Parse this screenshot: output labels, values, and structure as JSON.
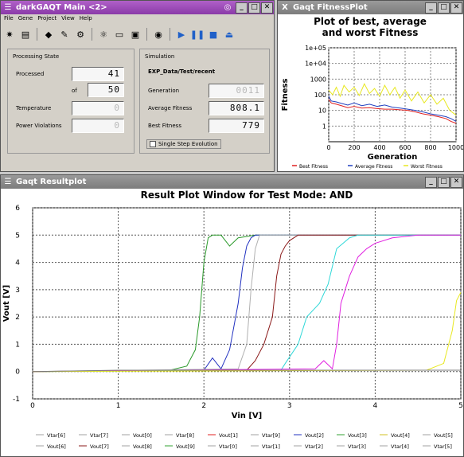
{
  "main_window": {
    "title": "darkGAQT Main <2>",
    "menu": [
      "File",
      "Gene",
      "Project",
      "View",
      "Help"
    ],
    "processing_state": {
      "label": "Processing State",
      "processed_label": "Processed",
      "processed_value": "41",
      "of_label": "of",
      "of_value": "50",
      "temperature_label": "Temperature",
      "temperature_value": "0",
      "power_label": "Power Violations",
      "power_value": "0"
    },
    "simulation": {
      "label": "Simulation",
      "path": "EXP_Data/Test/recent",
      "generation_label": "Generation",
      "generation_value": "0011",
      "avg_label": "Average Fitness",
      "avg_value": "808.1",
      "best_label": "Best Fitness",
      "best_value": "779",
      "single_step_label": "Single Step Evolution",
      "single_step_checked": false
    }
  },
  "fitness_window": {
    "title": "Gaqt FitnessPlot",
    "chart_data": {
      "type": "line",
      "title": "Plot of best, average and worst Fitness",
      "xlabel": "Generation",
      "ylabel": "Fitness",
      "xlim": [
        0,
        1000
      ],
      "ylim": [
        0.1,
        100000
      ],
      "yscale": "log",
      "x_ticks": [
        0,
        200,
        400,
        600,
        800,
        1000
      ],
      "y_ticks": [
        "1e+05",
        "1e+04",
        "1000",
        "100",
        "10",
        "1"
      ],
      "legend": [
        "Best Fitness",
        "Average Fitness",
        "Worst Fitness"
      ],
      "series": [
        {
          "name": "Best Fitness",
          "color": "#e02020",
          "x": [
            0,
            20,
            60,
            100,
            150,
            200,
            260,
            320,
            380,
            440,
            500,
            560,
            620,
            680,
            740,
            800,
            860,
            920,
            960,
            1000
          ],
          "y": [
            50,
            30,
            25,
            20,
            15,
            18,
            14,
            15,
            13,
            12,
            12,
            11,
            10,
            8,
            6,
            5,
            4,
            3,
            2,
            1.5
          ]
        },
        {
          "name": "Average Fitness",
          "color": "#2040c0",
          "x": [
            0,
            20,
            60,
            100,
            150,
            200,
            260,
            320,
            380,
            440,
            500,
            560,
            620,
            680,
            740,
            800,
            860,
            920,
            960,
            1000
          ],
          "y": [
            80,
            40,
            35,
            28,
            22,
            30,
            20,
            25,
            18,
            22,
            16,
            14,
            12,
            10,
            8,
            6,
            5,
            4,
            3,
            2
          ]
        },
        {
          "name": "Worst Fitness",
          "color": "#e8e820",
          "x": [
            0,
            30,
            60,
            90,
            120,
            160,
            200,
            240,
            280,
            320,
            360,
            400,
            440,
            480,
            520,
            560,
            600,
            650,
            700,
            750,
            800,
            850,
            900,
            950,
            1000
          ],
          "y": [
            200,
            100,
            300,
            80,
            400,
            150,
            300,
            90,
            500,
            120,
            250,
            80,
            400,
            100,
            300,
            60,
            200,
            40,
            150,
            30,
            100,
            25,
            60,
            10,
            5
          ]
        }
      ]
    }
  },
  "result_window": {
    "title": "Gaqt Resultplot",
    "chart_data": {
      "type": "line",
      "title": "Result Plot Window for Test Mode: AND",
      "xlabel": "Vin [V]",
      "ylabel": "Vout [V]",
      "xlim": [
        0,
        5
      ],
      "ylim": [
        -1,
        6
      ],
      "x_ticks": [
        0,
        1,
        2,
        3,
        4,
        5
      ],
      "y_ticks": [
        -1,
        0,
        1,
        2,
        3,
        4,
        5,
        6
      ],
      "legend": [
        "Vtar[6]",
        "Vtar[7]",
        "Vout[0]",
        "Vtar[8]",
        "Vout[1]",
        "Vtar[9]",
        "Vout[2]",
        "Vout[3]",
        "Vout[4]",
        "Vout[5]",
        "Vout[6]",
        "Vout[7]",
        "Vout[8]",
        "Vout[9]",
        "Vtar[0]",
        "Vtar[1]",
        "Vtar[2]",
        "Vtar[3]",
        "Vtar[4]",
        "Vtar[5]"
      ],
      "legend_colors": [
        "#a0a0a0",
        "#a0a0a0",
        "#a0a0a0",
        "#a0a0a0",
        "#e02020",
        "#a0a0a0",
        "#2030c0",
        "#30a030",
        "#d0c020",
        "#a0a0a0",
        "#a0a0a0",
        "#8b1a1a",
        "#a0a0a0",
        "#30a030",
        "#a0a0a0",
        "#a0a0a0",
        "#a0a0a0",
        "#a0a0a0",
        "#a0a0a0",
        "#a0a0a0"
      ],
      "series": [
        {
          "color": "#2b9a2b",
          "x": [
            0,
            1.6,
            1.8,
            1.9,
            1.95,
            2.0,
            2.05,
            2.1,
            2.2,
            2.3,
            2.4,
            2.6,
            3.0,
            4.0,
            5.0
          ],
          "y": [
            0,
            0.05,
            0.2,
            0.8,
            2.0,
            4.0,
            4.9,
            5.0,
            5.0,
            4.6,
            4.9,
            5.0,
            5.0,
            5.0,
            5.0
          ]
        },
        {
          "color": "#2030c0",
          "x": [
            0,
            2.0,
            2.1,
            2.2,
            2.3,
            2.4,
            2.45,
            2.5,
            2.55,
            2.6,
            3.0,
            5.0
          ],
          "y": [
            0,
            0.05,
            0.5,
            0.1,
            0.8,
            2.5,
            3.8,
            4.6,
            4.9,
            5.0,
            5.0,
            5.0
          ]
        },
        {
          "color": "#b0b0b0",
          "x": [
            0,
            2.4,
            2.5,
            2.55,
            2.6,
            2.65,
            2.7,
            3.0,
            5.0
          ],
          "y": [
            0,
            0.1,
            1.0,
            3.0,
            4.5,
            5.0,
            5.0,
            5.0,
            5.0
          ]
        },
        {
          "color": "#8b1a1a",
          "x": [
            0,
            2.5,
            2.6,
            2.7,
            2.8,
            2.85,
            2.9,
            2.95,
            3.0,
            3.1,
            3.3,
            5.0
          ],
          "y": [
            0,
            0.05,
            0.4,
            1.0,
            2.0,
            3.5,
            4.3,
            4.6,
            4.8,
            5.0,
            5.0,
            5.0
          ]
        },
        {
          "color": "#30d8d8",
          "x": [
            0,
            2.9,
            2.95,
            3.1,
            3.2,
            3.35,
            3.45,
            3.55,
            3.7,
            3.8,
            4.0,
            5.0
          ],
          "y": [
            0,
            0.05,
            0.3,
            1.0,
            2.0,
            2.5,
            3.2,
            4.5,
            4.9,
            5.0,
            5.0,
            5.0
          ]
        },
        {
          "color": "#e020e0",
          "x": [
            0,
            3.3,
            3.4,
            3.5,
            3.55,
            3.6,
            3.7,
            3.8,
            3.9,
            4.0,
            4.2,
            4.5,
            5.0
          ],
          "y": [
            0,
            0.1,
            0.4,
            0.1,
            1.0,
            2.5,
            3.5,
            4.2,
            4.5,
            4.7,
            4.9,
            5.0,
            5.0
          ]
        },
        {
          "color": "#e8e820",
          "x": [
            0,
            4.6,
            4.8,
            4.9,
            4.95,
            5.0
          ],
          "y": [
            0,
            0.05,
            0.3,
            1.5,
            2.6,
            2.9
          ]
        },
        {
          "color": "#7a7a7a",
          "x": [
            0,
            1.0,
            2.0,
            3.0,
            4.0,
            5.0
          ],
          "y": [
            0.0,
            0.05,
            0.05,
            0.05,
            0.05,
            0.05
          ]
        }
      ]
    }
  }
}
